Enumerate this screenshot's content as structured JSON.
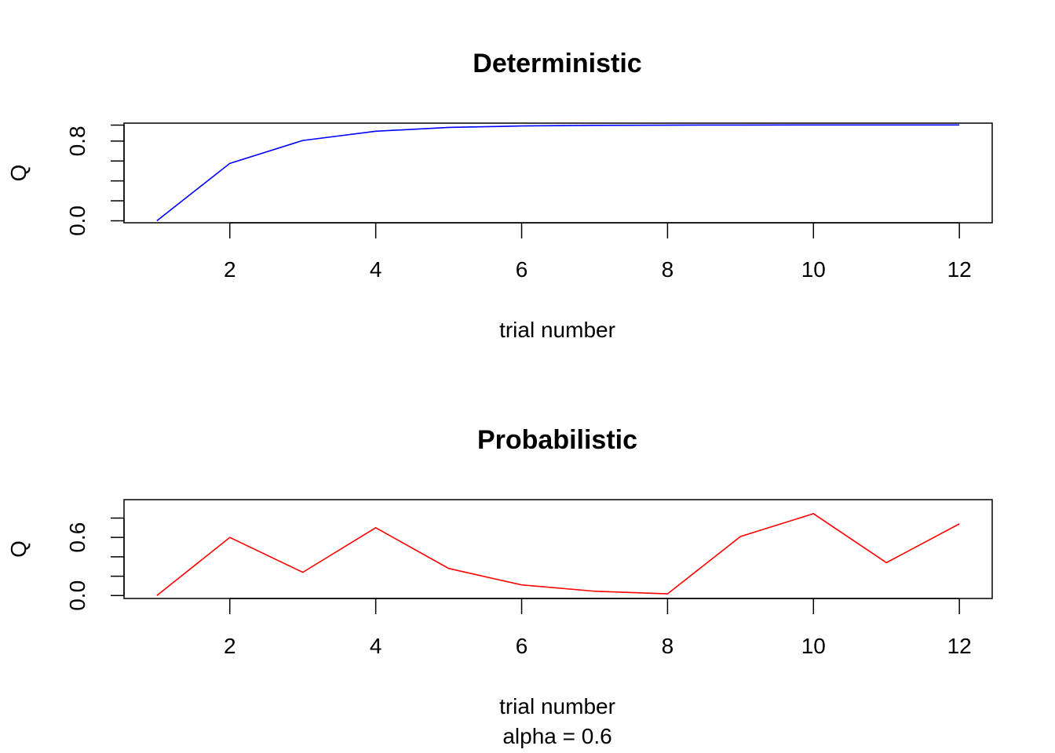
{
  "chart_data": [
    {
      "type": "line",
      "title": "Deterministic",
      "xlabel": "trial number",
      "ylabel": "Q",
      "xlim": [
        0.55,
        12.45
      ],
      "ylim": [
        -0.02,
        0.98
      ],
      "x_ticks": [
        2,
        4,
        6,
        8,
        10,
        12
      ],
      "y_ticks": [
        0.0,
        0.2,
        0.4,
        0.6,
        0.8,
        0.96
      ],
      "y_tick_labels": [
        {
          "value": 0.0,
          "label": "0.0"
        },
        {
          "value": 0.8,
          "label": "0.8"
        }
      ],
      "x": [
        1,
        2,
        3,
        4,
        5,
        6,
        7,
        8,
        9,
        10,
        11,
        12
      ],
      "series": [
        {
          "values": [
            0.0,
            0.576,
            0.806,
            0.899,
            0.937,
            0.952,
            0.958,
            0.96,
            0.961,
            0.962,
            0.962,
            0.962
          ]
        }
      ],
      "colors": [
        "#0000ff"
      ],
      "grid": false,
      "legend": "none"
    },
    {
      "type": "line",
      "title": "Probabilistic",
      "xlabel": "trial number",
      "sub_caption": "alpha = 0.6",
      "ylabel": "Q",
      "xlim": [
        0.55,
        12.45
      ],
      "ylim": [
        -0.03,
        0.99
      ],
      "x_ticks": [
        2,
        4,
        6,
        8,
        10,
        12
      ],
      "y_ticks": [
        0.0,
        0.2,
        0.4,
        0.6,
        0.8
      ],
      "y_tick_labels": [
        {
          "value": 0.0,
          "label": "0.0"
        },
        {
          "value": 0.6,
          "label": "0.6"
        }
      ],
      "x": [
        1,
        2,
        3,
        4,
        5,
        6,
        7,
        8,
        9,
        10,
        11,
        12
      ],
      "series": [
        {
          "values": [
            0.0,
            0.6,
            0.24,
            0.7,
            0.28,
            0.11,
            0.045,
            0.018,
            0.61,
            0.845,
            0.34,
            0.74
          ]
        }
      ],
      "colors": [
        "#ff0000"
      ],
      "grid": false,
      "legend": "none"
    }
  ]
}
